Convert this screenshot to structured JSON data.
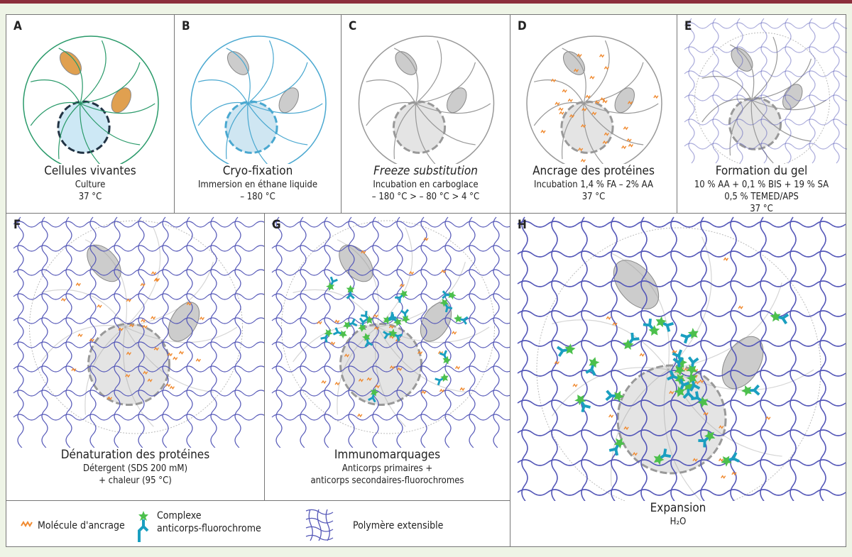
{
  "panels": [
    {
      "letter": "A",
      "title": "Cellules vivantes",
      "lines": [
        "Culture",
        "37 °C"
      ]
    },
    {
      "letter": "B",
      "title": "Cryo-fixation",
      "lines": [
        "Immersion en éthane liquide",
        "– 180 °C"
      ]
    },
    {
      "letter": "C",
      "title": "Freeze substitution",
      "lines": [
        "Incubation en carboglace",
        "– 180 °C > – 80 °C > 4 °C"
      ]
    },
    {
      "letter": "D",
      "title": "Ancrage des protéines",
      "lines": [
        "Incubation 1,4 % FA – 2% AA",
        "37 °C"
      ]
    },
    {
      "letter": "E",
      "title": "Formation du gel",
      "lines": [
        "10 % AA + 0,1 % BIS + 19 % SA",
        "0,5 % TEMED/APS",
        "37 °C"
      ]
    },
    {
      "letter": "F",
      "title": "Dénaturation des protéines",
      "lines": [
        "Détergent (SDS 200 mM)",
        "+ chaleur (95 °C)"
      ]
    },
    {
      "letter": "G",
      "title": "Immunomarquages",
      "lines": [
        "Anticorps primaires +",
        "anticorps secondaires-fluorochromes"
      ]
    },
    {
      "letter": "H",
      "title": "Expansion",
      "lines": [
        "H₂O"
      ]
    }
  ],
  "legend": {
    "anchor": "Molécule d'ancrage",
    "complex": [
      "Complexe",
      "anticorps-fluorochrome"
    ],
    "polymer": "Polymère extensible"
  },
  "colors": {
    "topbar": "#8c2f3c",
    "gel": "#5558b8",
    "anchor": "#f08a30",
    "antibody": "#1a9fc0",
    "fluorochrome": "#4cc04c",
    "cell": "#999999"
  }
}
